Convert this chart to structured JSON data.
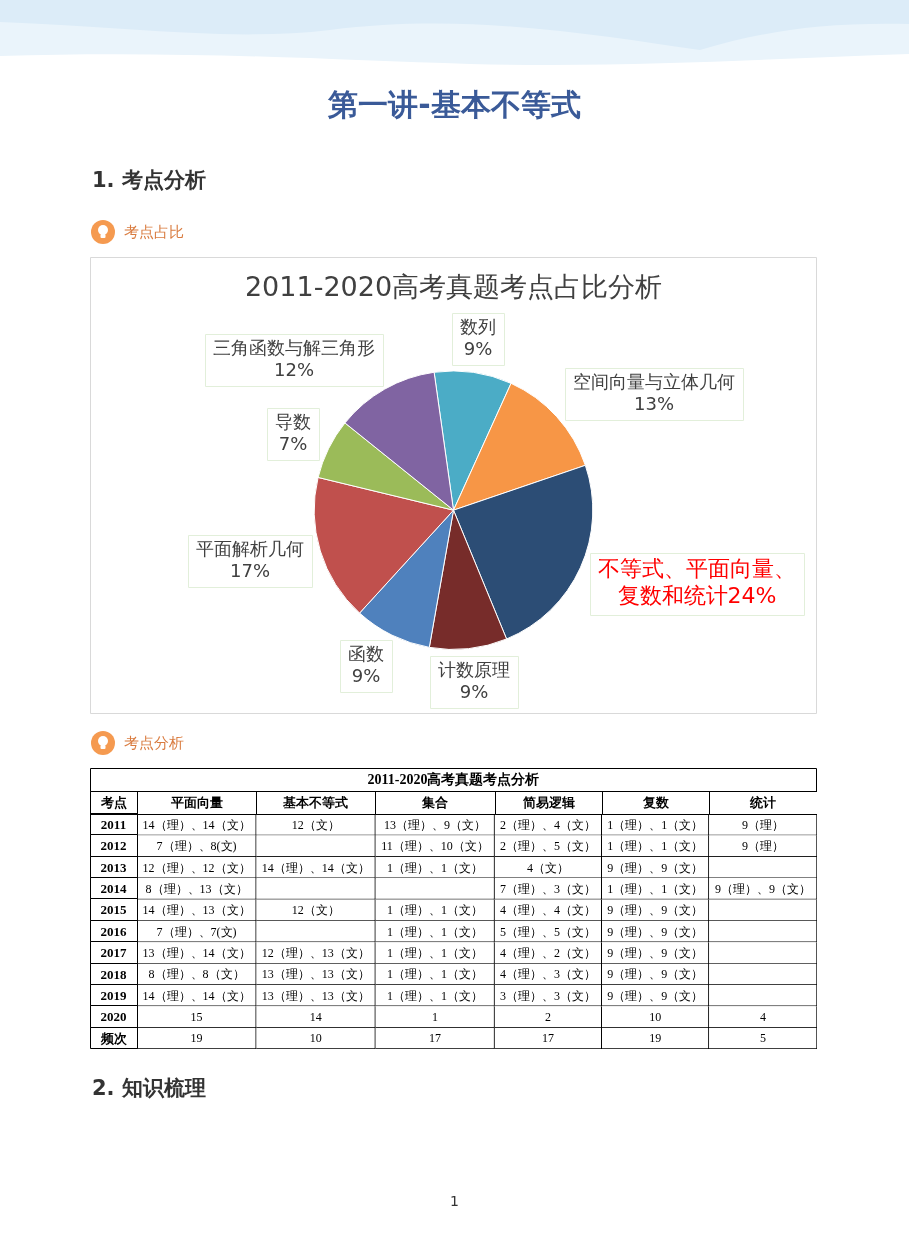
{
  "chart_data": [
    {
      "type": "pie",
      "title": "2011-2020高考真题考点占比分析",
      "categories": [
        "数列",
        "空间向量与立体几何",
        "不等式、平面向量、复数和统计",
        "计数原理",
        "函数",
        "平面解析几何",
        "导数",
        "三角函数与解三角形"
      ],
      "values": [
        9,
        13,
        24,
        9,
        9,
        17,
        7,
        12
      ],
      "colors": [
        "#4bacc6",
        "#f79646",
        "#2c4d75",
        "#772c2a",
        "#4f81bd",
        "#c0504d",
        "#9bbb59",
        "#8064a2"
      ],
      "value_labels": [
        "9%",
        "13%",
        "24%",
        "9%",
        "9%",
        "17%",
        "7%",
        "12%"
      ],
      "annotations": [
        "第一讲-基本不等式",
        "1. 考点分析",
        "考点占比"
      ]
    },
    {
      "type": "heatmap",
      "title": "2011-2020高考真题考点分析",
      "ylabel": "考点",
      "categories": [
        "平面向量",
        "基本不等式",
        "集合",
        "简易逻辑",
        "复数",
        "统计"
      ],
      "y_categories": [
        "2011",
        "2012",
        "2013",
        "2014",
        "2015",
        "2016",
        "2017",
        "2018",
        "2019",
        "2020",
        "频次"
      ],
      "cells": [
        [
          null,
          null,
          null,
          null,
          null,
          null
        ],
        [
          null,
          null,
          null,
          null,
          null,
          null
        ],
        [
          null,
          null,
          null,
          null,
          null,
          null
        ],
        [
          null,
          null,
          null,
          null,
          null,
          null
        ],
        [
          null,
          null,
          null,
          null,
          null,
          null
        ],
        [
          null,
          null,
          null,
          null,
          null,
          null
        ],
        [
          null,
          null,
          null,
          null,
          null,
          null
        ],
        [
          null,
          null,
          null,
          null,
          null,
          null
        ],
        [
          null,
          null,
          null,
          null,
          null,
          null
        ],
        [
          null,
          null,
          null,
          null,
          null,
          null
        ],
        [
          null,
          null,
          null,
          null,
          null,
          null
        ]
      ],
      "cell_labels": [
        [
          "14（理）、14（文）",
          "12（文）",
          "13（理）、9（文）",
          "2（理）、4（文）",
          "1（理）、1（文）",
          "9（理）"
        ],
        [
          "7（理）、8(文)",
          null,
          "11（理）、10（文）",
          "2（理）、5（文）",
          "1（理）、1（文）",
          "9（理）"
        ],
        [
          "12（理）、12（文）",
          "14（理）、14（文）",
          "1（理）、1（文）",
          "4（文）",
          "9（理）、9（文）",
          null
        ],
        [
          "8（理）、13（文）",
          null,
          null,
          "7（理）、3（文）",
          "1（理）、1（文）",
          "9（理）、9（文）"
        ],
        [
          "14（理）、13（文）",
          "12（文）",
          "1（理）、1（文）",
          "4（理）、4（文）",
          "9（理）、9（文）",
          null
        ],
        [
          "7（理）、7(文)",
          null,
          "1（理）、1（文）",
          "5（理）、5（文）",
          "9（理）、9（文）",
          null
        ],
        [
          "13（理）、14（文）",
          "12（理）、13（文）",
          "1（理）、1（文）",
          "4（理）、2（文）",
          "9（理）、9（文）",
          null
        ],
        [
          "8（理）、8（文）",
          "13（理）、13（文）",
          "1（理）、1（文）",
          "4（理）、3（文）",
          "9（理）、9（文）",
          null
        ],
        [
          "14（理）、14（文）",
          "13（理）、13（文）",
          "1（理）、1（文）",
          "3（理）、3（文）",
          "9（理）、9（文）",
          null
        ],
        [
          "15",
          "14",
          "1",
          "2",
          "10",
          "4"
        ],
        [
          "19",
          "10",
          "17",
          "17",
          "19",
          "5"
        ]
      ],
      "annotations": [
        "考点分析",
        "2. 知识梳理",
        "1"
      ]
    }
  ]
}
